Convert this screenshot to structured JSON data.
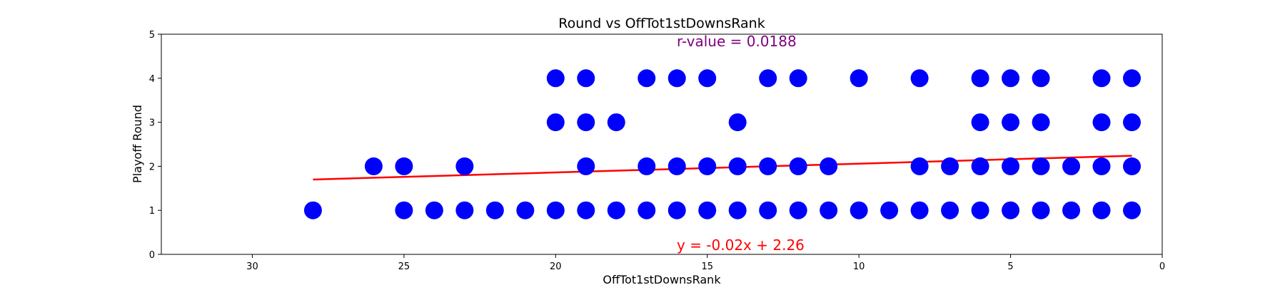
{
  "chart_data": {
    "type": "scatter",
    "title": "Round vs OffTot1stDownsRank",
    "xlabel": "OffTot1stDownsRank",
    "ylabel": "Playoff Round",
    "xlim": [
      33,
      0
    ],
    "ylim": [
      0,
      5
    ],
    "xticks": [
      30,
      25,
      20,
      15,
      10,
      5,
      0
    ],
    "yticks": [
      0,
      1,
      2,
      3,
      4,
      5
    ],
    "grid": false,
    "point_color": "#0000ff",
    "line_color": "#ff0000",
    "r_color": "#800080",
    "annotations": {
      "r_value": "r-value = 0.0188",
      "equation": "y = -0.02x + 2.26"
    },
    "regression": {
      "slope": -0.02,
      "intercept": 2.26,
      "x_range": [
        28,
        1
      ]
    },
    "points": [
      [
        20,
        4
      ],
      [
        19,
        4
      ],
      [
        17,
        4
      ],
      [
        16,
        4
      ],
      [
        15,
        4
      ],
      [
        13,
        4
      ],
      [
        12,
        4
      ],
      [
        10,
        4
      ],
      [
        8,
        4
      ],
      [
        6,
        4
      ],
      [
        5,
        4
      ],
      [
        4,
        4
      ],
      [
        2,
        4
      ],
      [
        1,
        4
      ],
      [
        20,
        3
      ],
      [
        19,
        3
      ],
      [
        18,
        3
      ],
      [
        14,
        3
      ],
      [
        6,
        3
      ],
      [
        5,
        3
      ],
      [
        4,
        3
      ],
      [
        2,
        3
      ],
      [
        1,
        3
      ],
      [
        26,
        2
      ],
      [
        25,
        2
      ],
      [
        23,
        2
      ],
      [
        19,
        2
      ],
      [
        17,
        2
      ],
      [
        16,
        2
      ],
      [
        15,
        2
      ],
      [
        14,
        2
      ],
      [
        13,
        2
      ],
      [
        12,
        2
      ],
      [
        11,
        2
      ],
      [
        8,
        2
      ],
      [
        7,
        2
      ],
      [
        6,
        2
      ],
      [
        5,
        2
      ],
      [
        4,
        2
      ],
      [
        3,
        2
      ],
      [
        2,
        2
      ],
      [
        1,
        2
      ],
      [
        28,
        1
      ],
      [
        25,
        1
      ],
      [
        24,
        1
      ],
      [
        23,
        1
      ],
      [
        22,
        1
      ],
      [
        21,
        1
      ],
      [
        20,
        1
      ],
      [
        19,
        1
      ],
      [
        18,
        1
      ],
      [
        17,
        1
      ],
      [
        16,
        1
      ],
      [
        15,
        1
      ],
      [
        14,
        1
      ],
      [
        13,
        1
      ],
      [
        12,
        1
      ],
      [
        11,
        1
      ],
      [
        10,
        1
      ],
      [
        9,
        1
      ],
      [
        8,
        1
      ],
      [
        7,
        1
      ],
      [
        6,
        1
      ],
      [
        5,
        1
      ],
      [
        4,
        1
      ],
      [
        3,
        1
      ],
      [
        2,
        1
      ],
      [
        1,
        1
      ]
    ]
  }
}
